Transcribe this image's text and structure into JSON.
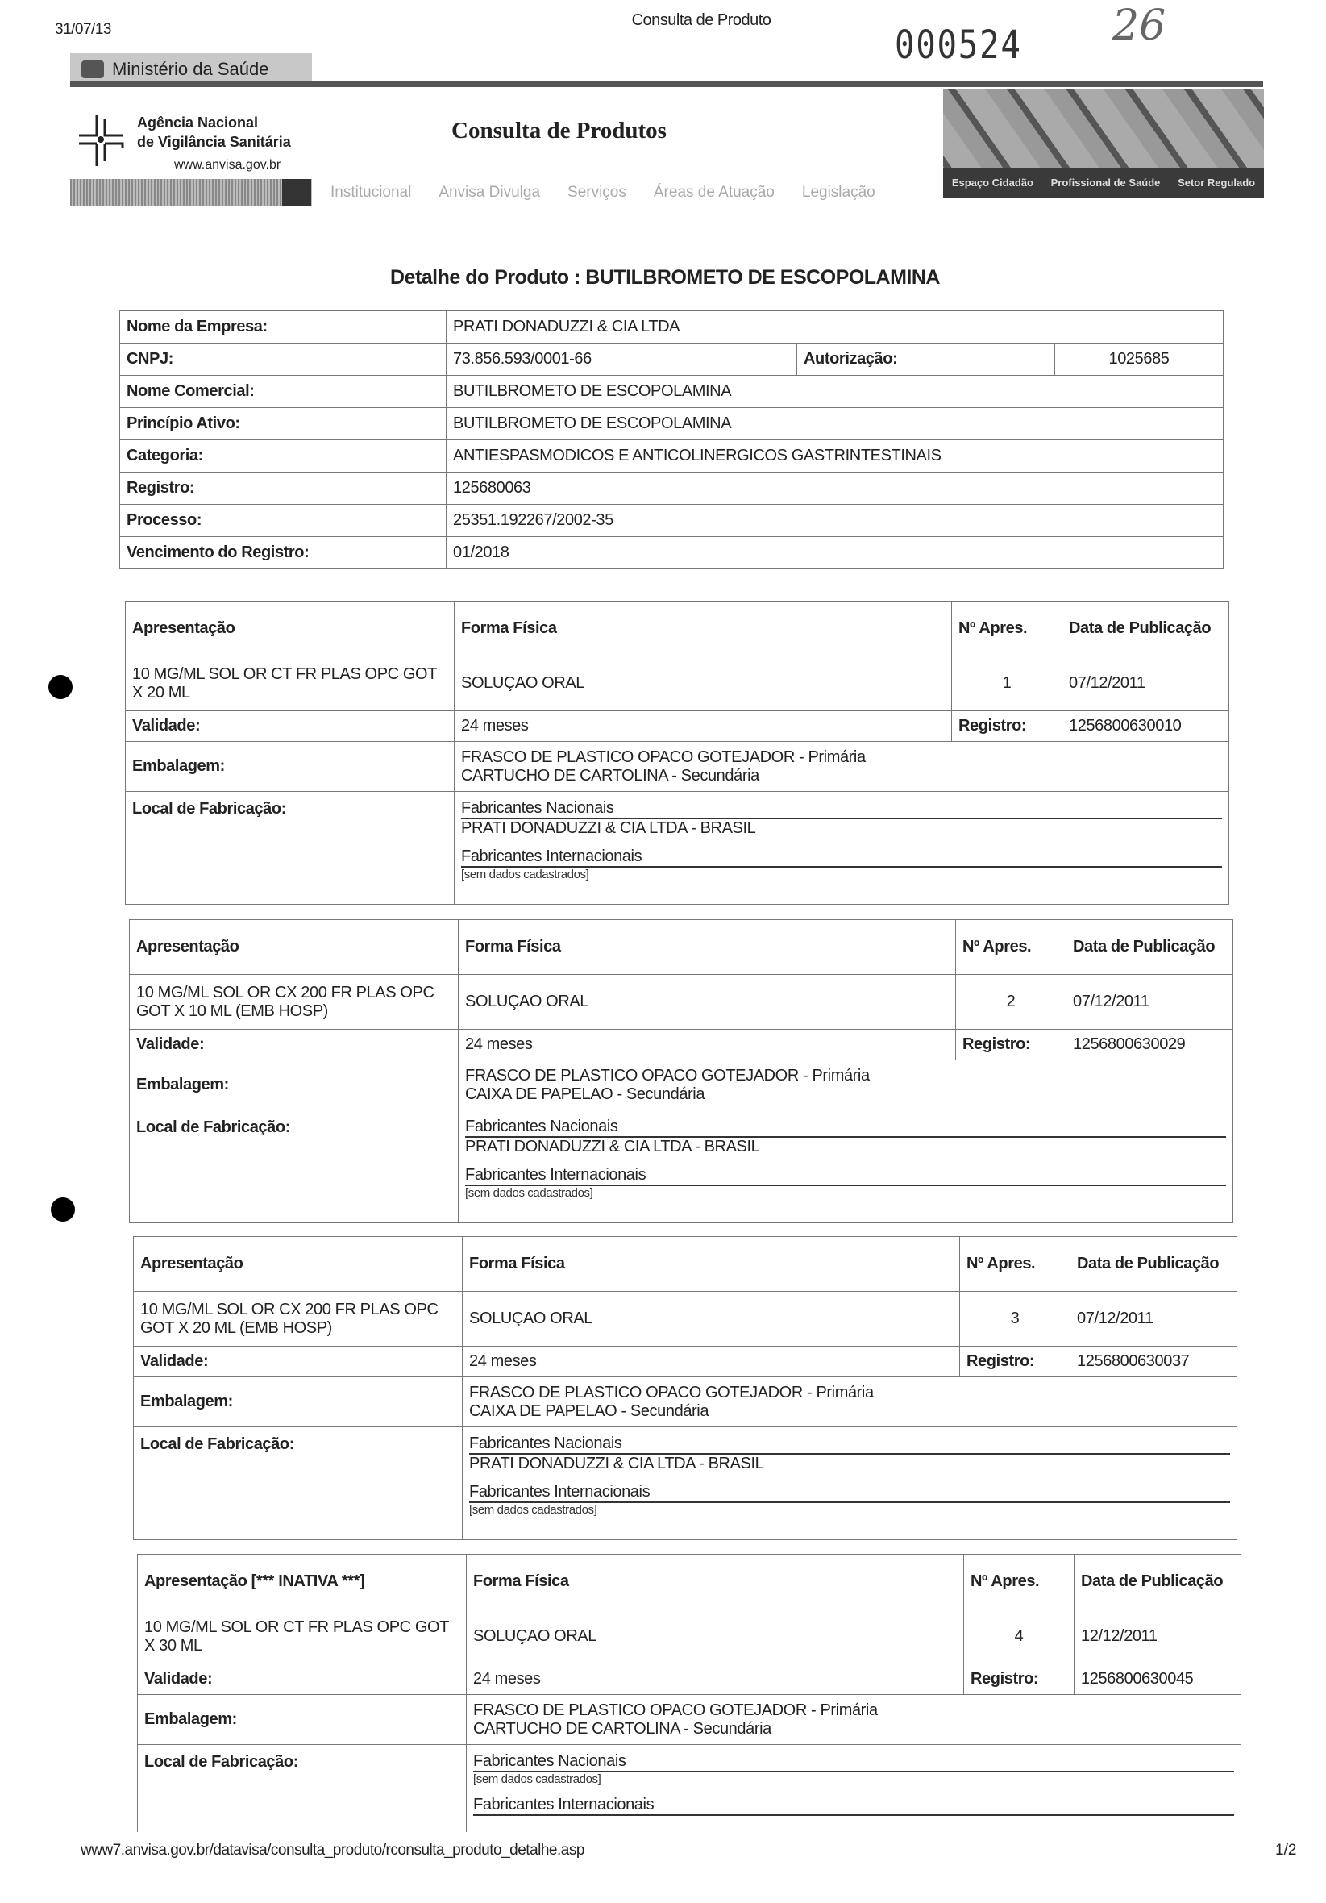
{
  "print_header": {
    "date": "31/07/13",
    "title": "Consulta de Produto",
    "stamp_number": "000524",
    "handwritten_page": "26"
  },
  "site": {
    "ministry": "Ministério da Saúde",
    "agency_line1": "Agência Nacional",
    "agency_line2": "de Vigilância Sanitária",
    "agency_url": "www.anvisa.gov.br",
    "title": "Consulta de Produtos",
    "nav": [
      "Institucional",
      "Anvisa Divulga",
      "Serviços",
      "Áreas de Atuação",
      "Legislação"
    ],
    "banner_links": [
      "Espaço Cidadão",
      "Profissional de Saúde",
      "Setor Regulado"
    ]
  },
  "page_heading": "Detalhe do Produto : BUTILBROMETO DE ESCOPOLAMINA",
  "product": {
    "empresa_label": "Nome da Empresa:",
    "empresa": "PRATI DONADUZZI & CIA LTDA",
    "cnpj_label": "CNPJ:",
    "cnpj": "73.856.593/0001-66",
    "autorizacao_label": "Autorização:",
    "autorizacao": "1025685",
    "nome_comercial_label": "Nome Comercial:",
    "nome_comercial": "BUTILBROMETO DE ESCOPOLAMINA",
    "principio_label": "Princípio Ativo:",
    "principio": "BUTILBROMETO DE ESCOPOLAMINA",
    "categoria_label": "Categoria:",
    "categoria": "ANTIESPASMODICOS E ANTICOLINERGICOS GASTRINTESTINAIS",
    "registro_label": "Registro:",
    "registro": "125680063",
    "processo_label": "Processo:",
    "processo": "25351.192267/2002-35",
    "vencimento_label": "Vencimento do Registro:",
    "vencimento": "01/2018"
  },
  "labels": {
    "forma": "Forma Física",
    "num": "Nº Apres.",
    "data_pub": "Data de Publicação",
    "validade": "Validade:",
    "registro": "Registro:",
    "embalagem": "Embalagem:",
    "local": "Local de Fabricação:",
    "fab_nac": "Fabricantes Nacionais",
    "fab_int": "Fabricantes Internacionais"
  },
  "presentations": [
    {
      "header": "Apresentação",
      "apresentacao": "10 MG/ML SOL OR CT FR PLAS OPC GOT X 20 ML",
      "forma": "SOLUÇAO ORAL",
      "num": "1",
      "data": "07/12/2011",
      "validade": "24 meses",
      "registro": "1256800630010",
      "emb1": "FRASCO DE PLASTICO OPACO GOTEJADOR - Primária",
      "emb2": "CARTUCHO DE CARTOLINA - Secundária",
      "nac": "PRATI DONADUZZI & CIA LTDA - BRASIL",
      "int": "[sem dados cadastrados]"
    },
    {
      "header": "Apresentação",
      "apresentacao": "10 MG/ML SOL OR CX 200 FR PLAS OPC GOT X 10 ML (EMB HOSP)",
      "forma": "SOLUÇAO ORAL",
      "num": "2",
      "data": "07/12/2011",
      "validade": "24 meses",
      "registro": "1256800630029",
      "emb1": "FRASCO DE PLASTICO OPACO GOTEJADOR - Primária",
      "emb2": "CAIXA DE PAPELAO - Secundária",
      "nac": "PRATI DONADUZZI & CIA LTDA - BRASIL",
      "int": "[sem dados cadastrados]"
    },
    {
      "header": "Apresentação",
      "apresentacao": "10 MG/ML SOL OR CX 200 FR PLAS OPC GOT X 20 ML (EMB HOSP)",
      "forma": "SOLUÇAO ORAL",
      "num": "3",
      "data": "07/12/2011",
      "validade": "24 meses",
      "registro": "1256800630037",
      "emb1": "FRASCO DE PLASTICO OPACO GOTEJADOR - Primária",
      "emb2": "CAIXA DE PAPELAO - Secundária",
      "nac": "PRATI DONADUZZI & CIA LTDA - BRASIL",
      "int": "[sem dados cadastrados]"
    },
    {
      "header": "Apresentação [*** INATIVA ***]",
      "apresentacao": "10 MG/ML SOL OR CT FR PLAS OPC GOT X 30 ML",
      "forma": "SOLUÇAO ORAL",
      "num": "4",
      "data": "12/12/2011",
      "validade": "24 meses",
      "registro": "1256800630045",
      "emb1": "FRASCO DE PLASTICO OPACO GOTEJADOR - Primária",
      "emb2": "CARTUCHO DE CARTOLINA - Secundária",
      "nac": "[sem dados cadastrados]",
      "int": ""
    }
  ],
  "footer": {
    "url": "www7.anvisa.gov.br/datavisa/consulta_produto/rconsulta_produto_detalhe.asp",
    "page": "1/2"
  }
}
